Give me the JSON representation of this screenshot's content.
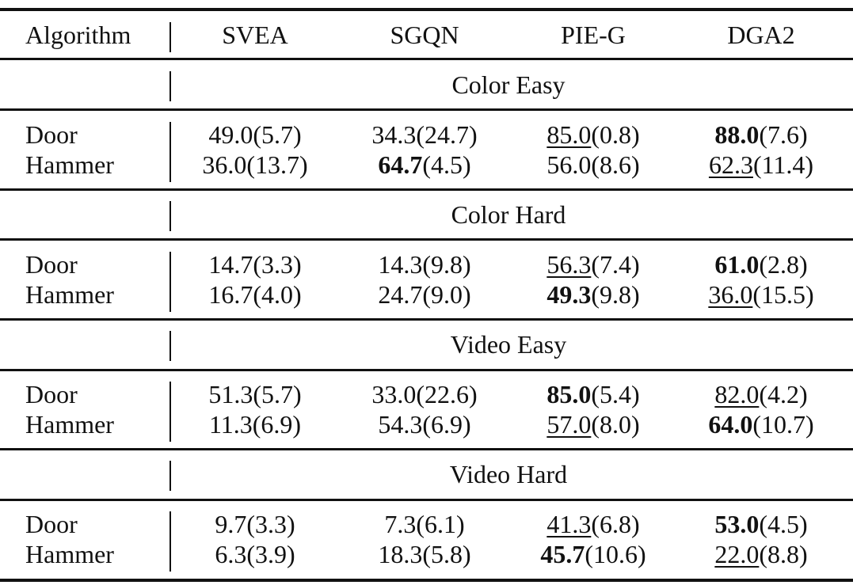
{
  "header": {
    "algorithm": "Algorithm",
    "columns": [
      "SVEA",
      "SGQN",
      "PIE-G",
      "DGA2"
    ]
  },
  "sections": [
    {
      "title": "Color Easy",
      "rows": [
        {
          "task": "Door",
          "cells": [
            {
              "mean": "49.0",
              "sd": "(5.7)",
              "style": "none"
            },
            {
              "mean": "34.3",
              "sd": "(24.7)",
              "style": "none"
            },
            {
              "mean": "85.0",
              "sd": "(0.8)",
              "style": "underline"
            },
            {
              "mean": "88.0",
              "sd": "(7.6)",
              "style": "bold"
            }
          ]
        },
        {
          "task": "Hammer",
          "cells": [
            {
              "mean": "36.0",
              "sd": "(13.7)",
              "style": "none"
            },
            {
              "mean": "64.7",
              "sd": "(4.5)",
              "style": "bold"
            },
            {
              "mean": "56.0",
              "sd": "(8.6)",
              "style": "none"
            },
            {
              "mean": "62.3",
              "sd": "(11.4)",
              "style": "underline"
            }
          ]
        }
      ]
    },
    {
      "title": "Color Hard",
      "rows": [
        {
          "task": "Door",
          "cells": [
            {
              "mean": "14.7",
              "sd": "(3.3)",
              "style": "none"
            },
            {
              "mean": "14.3",
              "sd": "(9.8)",
              "style": "none"
            },
            {
              "mean": "56.3",
              "sd": "(7.4)",
              "style": "underline"
            },
            {
              "mean": "61.0",
              "sd": "(2.8)",
              "style": "bold"
            }
          ]
        },
        {
          "task": "Hammer",
          "cells": [
            {
              "mean": "16.7",
              "sd": "(4.0)",
              "style": "none"
            },
            {
              "mean": "24.7",
              "sd": "(9.0)",
              "style": "none"
            },
            {
              "mean": "49.3",
              "sd": "(9.8)",
              "style": "bold"
            },
            {
              "mean": "36.0",
              "sd": "(15.5)",
              "style": "underline"
            }
          ]
        }
      ]
    },
    {
      "title": "Video Easy",
      "rows": [
        {
          "task": "Door",
          "cells": [
            {
              "mean": "51.3",
              "sd": "(5.7)",
              "style": "none"
            },
            {
              "mean": "33.0",
              "sd": "(22.6)",
              "style": "none"
            },
            {
              "mean": "85.0",
              "sd": "(5.4)",
              "style": "bold"
            },
            {
              "mean": "82.0",
              "sd": "(4.2)",
              "style": "underline"
            }
          ]
        },
        {
          "task": "Hammer",
          "cells": [
            {
              "mean": "11.3",
              "sd": "(6.9)",
              "style": "none"
            },
            {
              "mean": "54.3",
              "sd": "(6.9)",
              "style": "none"
            },
            {
              "mean": "57.0",
              "sd": "(8.0)",
              "style": "underline"
            },
            {
              "mean": "64.0",
              "sd": "(10.7)",
              "style": "bold"
            }
          ]
        }
      ]
    },
    {
      "title": "Video Hard",
      "rows": [
        {
          "task": "Door",
          "cells": [
            {
              "mean": "9.7",
              "sd": "(3.3)",
              "style": "none"
            },
            {
              "mean": "7.3",
              "sd": "(6.1)",
              "style": "none"
            },
            {
              "mean": "41.3",
              "sd": "(6.8)",
              "style": "underline"
            },
            {
              "mean": "53.0",
              "sd": "(4.5)",
              "style": "bold"
            }
          ]
        },
        {
          "task": "Hammer",
          "cells": [
            {
              "mean": "6.3",
              "sd": "(3.9)",
              "style": "none"
            },
            {
              "mean": "18.3",
              "sd": "(5.8)",
              "style": "none"
            },
            {
              "mean": "45.7",
              "sd": "(10.6)",
              "style": "bold"
            },
            {
              "mean": "22.0",
              "sd": "(8.8)",
              "style": "underline"
            }
          ]
        }
      ]
    }
  ]
}
